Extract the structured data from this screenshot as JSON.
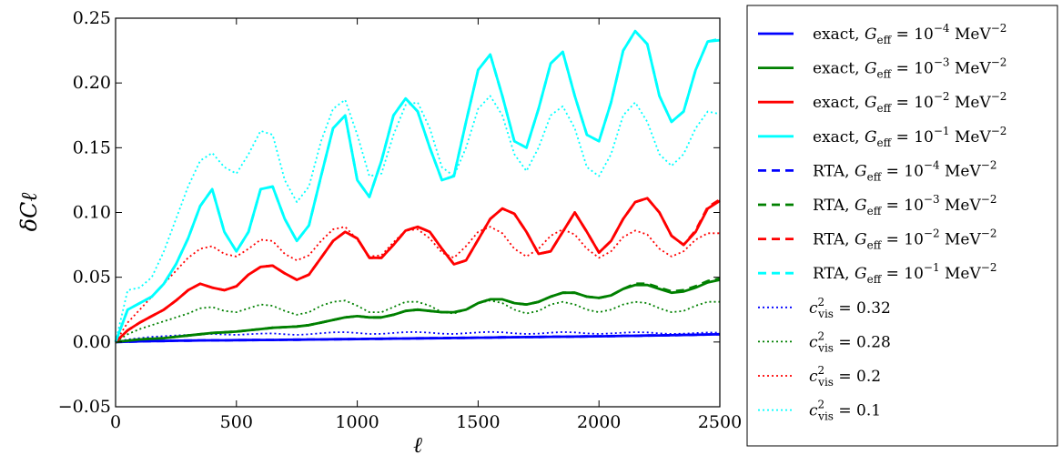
{
  "chart_data": {
    "type": "line",
    "xlabel": "ℓ",
    "ylabel": "δCℓ",
    "xlim": [
      0,
      2500
    ],
    "ylim": [
      -0.05,
      0.25
    ],
    "xticks": [
      0,
      500,
      1000,
      1500,
      2000,
      2500
    ],
    "xtick_labels": [
      "0",
      "500",
      "1000",
      "1500",
      "2000",
      "2500"
    ],
    "yticks": [
      -0.05,
      0.0,
      0.05,
      0.1,
      0.15,
      0.2,
      0.25
    ],
    "ytick_labels": [
      "−0.05",
      "0.00",
      "0.05",
      "0.10",
      "0.15",
      "0.20",
      "0.25"
    ],
    "grid": false,
    "legend_position": "outside-right",
    "x": [
      0,
      50,
      100,
      150,
      200,
      250,
      300,
      350,
      400,
      450,
      500,
      550,
      600,
      650,
      700,
      750,
      800,
      850,
      900,
      950,
      1000,
      1050,
      1100,
      1150,
      1200,
      1250,
      1300,
      1350,
      1400,
      1450,
      1500,
      1550,
      1600,
      1650,
      1700,
      1750,
      1800,
      1850,
      1900,
      1950,
      2000,
      2050,
      2100,
      2150,
      2200,
      2250,
      2300,
      2350,
      2400,
      2450,
      2500
    ],
    "series": [
      {
        "name": "exact, G_eff = 10^-4 MeV^-2",
        "legend_prefix": "exact, ",
        "legend_value": "10",
        "legend_exp": "−4",
        "color": "#0000ff",
        "style": "solid",
        "values": [
          0,
          0.0002,
          0.0005,
          0.0007,
          0.0008,
          0.001,
          0.0011,
          0.0012,
          0.0013,
          0.0013,
          0.0014,
          0.0015,
          0.0016,
          0.0016,
          0.0017,
          0.0018,
          0.0019,
          0.002,
          0.0021,
          0.0022,
          0.0023,
          0.0024,
          0.0025,
          0.0026,
          0.0027,
          0.0028,
          0.0029,
          0.003,
          0.0031,
          0.0032,
          0.0033,
          0.0034,
          0.0036,
          0.0037,
          0.0038,
          0.0039,
          0.004,
          0.0041,
          0.0042,
          0.0043,
          0.0044,
          0.0045,
          0.0047,
          0.0048,
          0.005,
          0.0051,
          0.0052,
          0.0054,
          0.0056,
          0.0058,
          0.006
        ]
      },
      {
        "name": "exact, G_eff = 10^-3 MeV^-2",
        "legend_prefix": "exact, ",
        "legend_value": "10",
        "legend_exp": "−3",
        "color": "#008000",
        "style": "solid",
        "values": [
          0,
          0.001,
          0.002,
          0.0025,
          0.003,
          0.004,
          0.005,
          0.006,
          0.007,
          0.0075,
          0.008,
          0.009,
          0.01,
          0.011,
          0.0115,
          0.012,
          0.013,
          0.015,
          0.017,
          0.019,
          0.02,
          0.019,
          0.019,
          0.021,
          0.024,
          0.025,
          0.024,
          0.023,
          0.023,
          0.025,
          0.03,
          0.033,
          0.033,
          0.03,
          0.029,
          0.031,
          0.035,
          0.038,
          0.038,
          0.035,
          0.034,
          0.036,
          0.041,
          0.044,
          0.044,
          0.041,
          0.038,
          0.039,
          0.042,
          0.046,
          0.048
        ]
      },
      {
        "name": "exact, G_eff = 10^-2 MeV^-2",
        "legend_prefix": "exact, ",
        "legend_value": "10",
        "legend_exp": "−2",
        "color": "#ff0000",
        "style": "solid",
        "values": [
          0,
          0.009,
          0.015,
          0.02,
          0.025,
          0.032,
          0.04,
          0.045,
          0.042,
          0.04,
          0.043,
          0.052,
          0.058,
          0.059,
          0.053,
          0.048,
          0.052,
          0.065,
          0.078,
          0.085,
          0.08,
          0.065,
          0.065,
          0.075,
          0.086,
          0.089,
          0.085,
          0.072,
          0.06,
          0.063,
          0.079,
          0.095,
          0.103,
          0.099,
          0.085,
          0.068,
          0.07,
          0.085,
          0.1,
          0.085,
          0.069,
          0.078,
          0.095,
          0.108,
          0.111,
          0.1,
          0.082,
          0.075,
          0.085,
          0.103,
          0.109
        ]
      },
      {
        "name": "exact, G_eff = 10^-1 MeV^-2",
        "legend_prefix": "exact, ",
        "legend_value": "10",
        "legend_exp": "−1",
        "color": "#00ffff",
        "style": "solid",
        "values": [
          0,
          0.025,
          0.03,
          0.035,
          0.045,
          0.06,
          0.08,
          0.105,
          0.118,
          0.085,
          0.07,
          0.085,
          0.118,
          0.12,
          0.095,
          0.078,
          0.09,
          0.128,
          0.165,
          0.175,
          0.125,
          0.112,
          0.14,
          0.175,
          0.188,
          0.178,
          0.15,
          0.125,
          0.128,
          0.17,
          0.21,
          0.222,
          0.19,
          0.155,
          0.15,
          0.18,
          0.215,
          0.224,
          0.19,
          0.16,
          0.155,
          0.185,
          0.225,
          0.24,
          0.23,
          0.19,
          0.17,
          0.178,
          0.21,
          0.232,
          0.233
        ]
      },
      {
        "name": "RTA, G_eff = 10^-4 MeV^-2",
        "legend_prefix": "RTA, ",
        "legend_value": "10",
        "legend_exp": "−4",
        "color": "#0000ff",
        "style": "dashed",
        "values": [
          0,
          0.0002,
          0.0005,
          0.0007,
          0.0008,
          0.001,
          0.0011,
          0.0012,
          0.0013,
          0.0013,
          0.0014,
          0.0015,
          0.0016,
          0.0016,
          0.0017,
          0.0018,
          0.0019,
          0.002,
          0.0021,
          0.0022,
          0.0023,
          0.0024,
          0.0025,
          0.0026,
          0.0027,
          0.0028,
          0.0029,
          0.003,
          0.0031,
          0.0032,
          0.0033,
          0.0034,
          0.0036,
          0.0037,
          0.0038,
          0.0039,
          0.004,
          0.0041,
          0.0042,
          0.0043,
          0.0044,
          0.0045,
          0.0047,
          0.0048,
          0.005,
          0.0051,
          0.0052,
          0.0054,
          0.0056,
          0.0058,
          0.006
        ]
      },
      {
        "name": "RTA, G_eff = 10^-3 MeV^-2",
        "legend_prefix": "RTA, ",
        "legend_value": "10",
        "legend_exp": "−3",
        "color": "#008000",
        "style": "dashed",
        "values": [
          0,
          0.001,
          0.002,
          0.0025,
          0.003,
          0.004,
          0.005,
          0.006,
          0.007,
          0.0075,
          0.008,
          0.009,
          0.01,
          0.011,
          0.0115,
          0.012,
          0.013,
          0.015,
          0.017,
          0.019,
          0.02,
          0.019,
          0.019,
          0.021,
          0.024,
          0.025,
          0.024,
          0.023,
          0.023,
          0.025,
          0.03,
          0.033,
          0.033,
          0.03,
          0.029,
          0.031,
          0.035,
          0.038,
          0.038,
          0.035,
          0.034,
          0.036,
          0.041,
          0.045,
          0.045,
          0.042,
          0.039,
          0.04,
          0.043,
          0.047,
          0.049
        ]
      },
      {
        "name": "RTA, G_eff = 10^-2 MeV^-2",
        "legend_prefix": "RTA, ",
        "legend_value": "10",
        "legend_exp": "−2",
        "color": "#ff0000",
        "style": "dashed",
        "values": [
          0,
          0.009,
          0.015,
          0.02,
          0.025,
          0.032,
          0.04,
          0.045,
          0.042,
          0.04,
          0.043,
          0.052,
          0.058,
          0.059,
          0.053,
          0.048,
          0.052,
          0.065,
          0.078,
          0.085,
          0.08,
          0.065,
          0.065,
          0.075,
          0.086,
          0.089,
          0.085,
          0.072,
          0.06,
          0.063,
          0.079,
          0.095,
          0.103,
          0.099,
          0.085,
          0.068,
          0.07,
          0.085,
          0.1,
          0.085,
          0.069,
          0.078,
          0.095,
          0.108,
          0.111,
          0.1,
          0.082,
          0.075,
          0.086,
          0.104,
          0.11
        ]
      },
      {
        "name": "RTA, G_eff = 10^-1 MeV^-2",
        "legend_prefix": "RTA, ",
        "legend_value": "10",
        "legend_exp": "−1",
        "color": "#00ffff",
        "style": "dashed",
        "values": [
          0,
          0.025,
          0.03,
          0.035,
          0.045,
          0.06,
          0.08,
          0.105,
          0.118,
          0.085,
          0.07,
          0.085,
          0.118,
          0.12,
          0.095,
          0.078,
          0.09,
          0.128,
          0.165,
          0.175,
          0.125,
          0.112,
          0.14,
          0.175,
          0.188,
          0.178,
          0.15,
          0.125,
          0.128,
          0.17,
          0.21,
          0.222,
          0.19,
          0.155,
          0.15,
          0.18,
          0.215,
          0.224,
          0.19,
          0.16,
          0.155,
          0.185,
          0.225,
          0.24,
          0.23,
          0.19,
          0.17,
          0.178,
          0.21,
          0.232,
          0.234
        ]
      },
      {
        "name": "c_vis^2 = 0.32",
        "legend_cvis": "0.32",
        "color": "#0000ff",
        "style": "dotted",
        "values": [
          0,
          0.002,
          0.003,
          0.004,
          0.0045,
          0.005,
          0.0055,
          0.006,
          0.0062,
          0.0058,
          0.0055,
          0.006,
          0.0065,
          0.0066,
          0.006,
          0.0055,
          0.006,
          0.0068,
          0.0075,
          0.0076,
          0.007,
          0.0062,
          0.0063,
          0.007,
          0.0076,
          0.0077,
          0.0072,
          0.0064,
          0.0062,
          0.0068,
          0.0074,
          0.0078,
          0.0075,
          0.0067,
          0.0062,
          0.0065,
          0.0072,
          0.0077,
          0.0074,
          0.0066,
          0.0062,
          0.0066,
          0.0072,
          0.0076,
          0.0074,
          0.0066,
          0.0062,
          0.0064,
          0.0069,
          0.0073,
          0.0072
        ]
      },
      {
        "name": "c_vis^2 = 0.28",
        "legend_cvis": "0.28",
        "color": "#008000",
        "style": "dotted",
        "values": [
          0,
          0.006,
          0.01,
          0.013,
          0.016,
          0.019,
          0.022,
          0.026,
          0.027,
          0.024,
          0.023,
          0.026,
          0.029,
          0.028,
          0.024,
          0.021,
          0.023,
          0.028,
          0.031,
          0.032,
          0.028,
          0.023,
          0.023,
          0.027,
          0.031,
          0.031,
          0.028,
          0.023,
          0.022,
          0.025,
          0.03,
          0.032,
          0.03,
          0.025,
          0.022,
          0.024,
          0.029,
          0.031,
          0.029,
          0.025,
          0.023,
          0.025,
          0.029,
          0.031,
          0.03,
          0.026,
          0.023,
          0.024,
          0.028,
          0.031,
          0.031
        ]
      },
      {
        "name": "c_vis^2 = 0.2",
        "legend_cvis": "0.2",
        "color": "#ff0000",
        "style": "dotted",
        "values": [
          0,
          0.015,
          0.025,
          0.035,
          0.045,
          0.055,
          0.065,
          0.072,
          0.074,
          0.068,
          0.066,
          0.072,
          0.079,
          0.078,
          0.068,
          0.063,
          0.067,
          0.078,
          0.087,
          0.089,
          0.079,
          0.066,
          0.067,
          0.077,
          0.086,
          0.087,
          0.08,
          0.069,
          0.065,
          0.074,
          0.085,
          0.089,
          0.084,
          0.072,
          0.066,
          0.072,
          0.082,
          0.087,
          0.083,
          0.072,
          0.065,
          0.07,
          0.081,
          0.086,
          0.083,
          0.072,
          0.066,
          0.07,
          0.079,
          0.084,
          0.084
        ]
      },
      {
        "name": "c_vis^2 = 0.1",
        "legend_cvis": "0.1",
        "color": "#00ffff",
        "style": "dotted",
        "values": [
          0,
          0.04,
          0.042,
          0.05,
          0.07,
          0.095,
          0.12,
          0.14,
          0.146,
          0.135,
          0.13,
          0.145,
          0.163,
          0.16,
          0.125,
          0.108,
          0.12,
          0.155,
          0.18,
          0.187,
          0.16,
          0.128,
          0.13,
          0.16,
          0.183,
          0.185,
          0.165,
          0.135,
          0.128,
          0.15,
          0.18,
          0.19,
          0.175,
          0.145,
          0.132,
          0.15,
          0.175,
          0.182,
          0.165,
          0.135,
          0.128,
          0.145,
          0.175,
          0.185,
          0.17,
          0.145,
          0.136,
          0.145,
          0.165,
          0.178,
          0.176
        ]
      }
    ]
  }
}
